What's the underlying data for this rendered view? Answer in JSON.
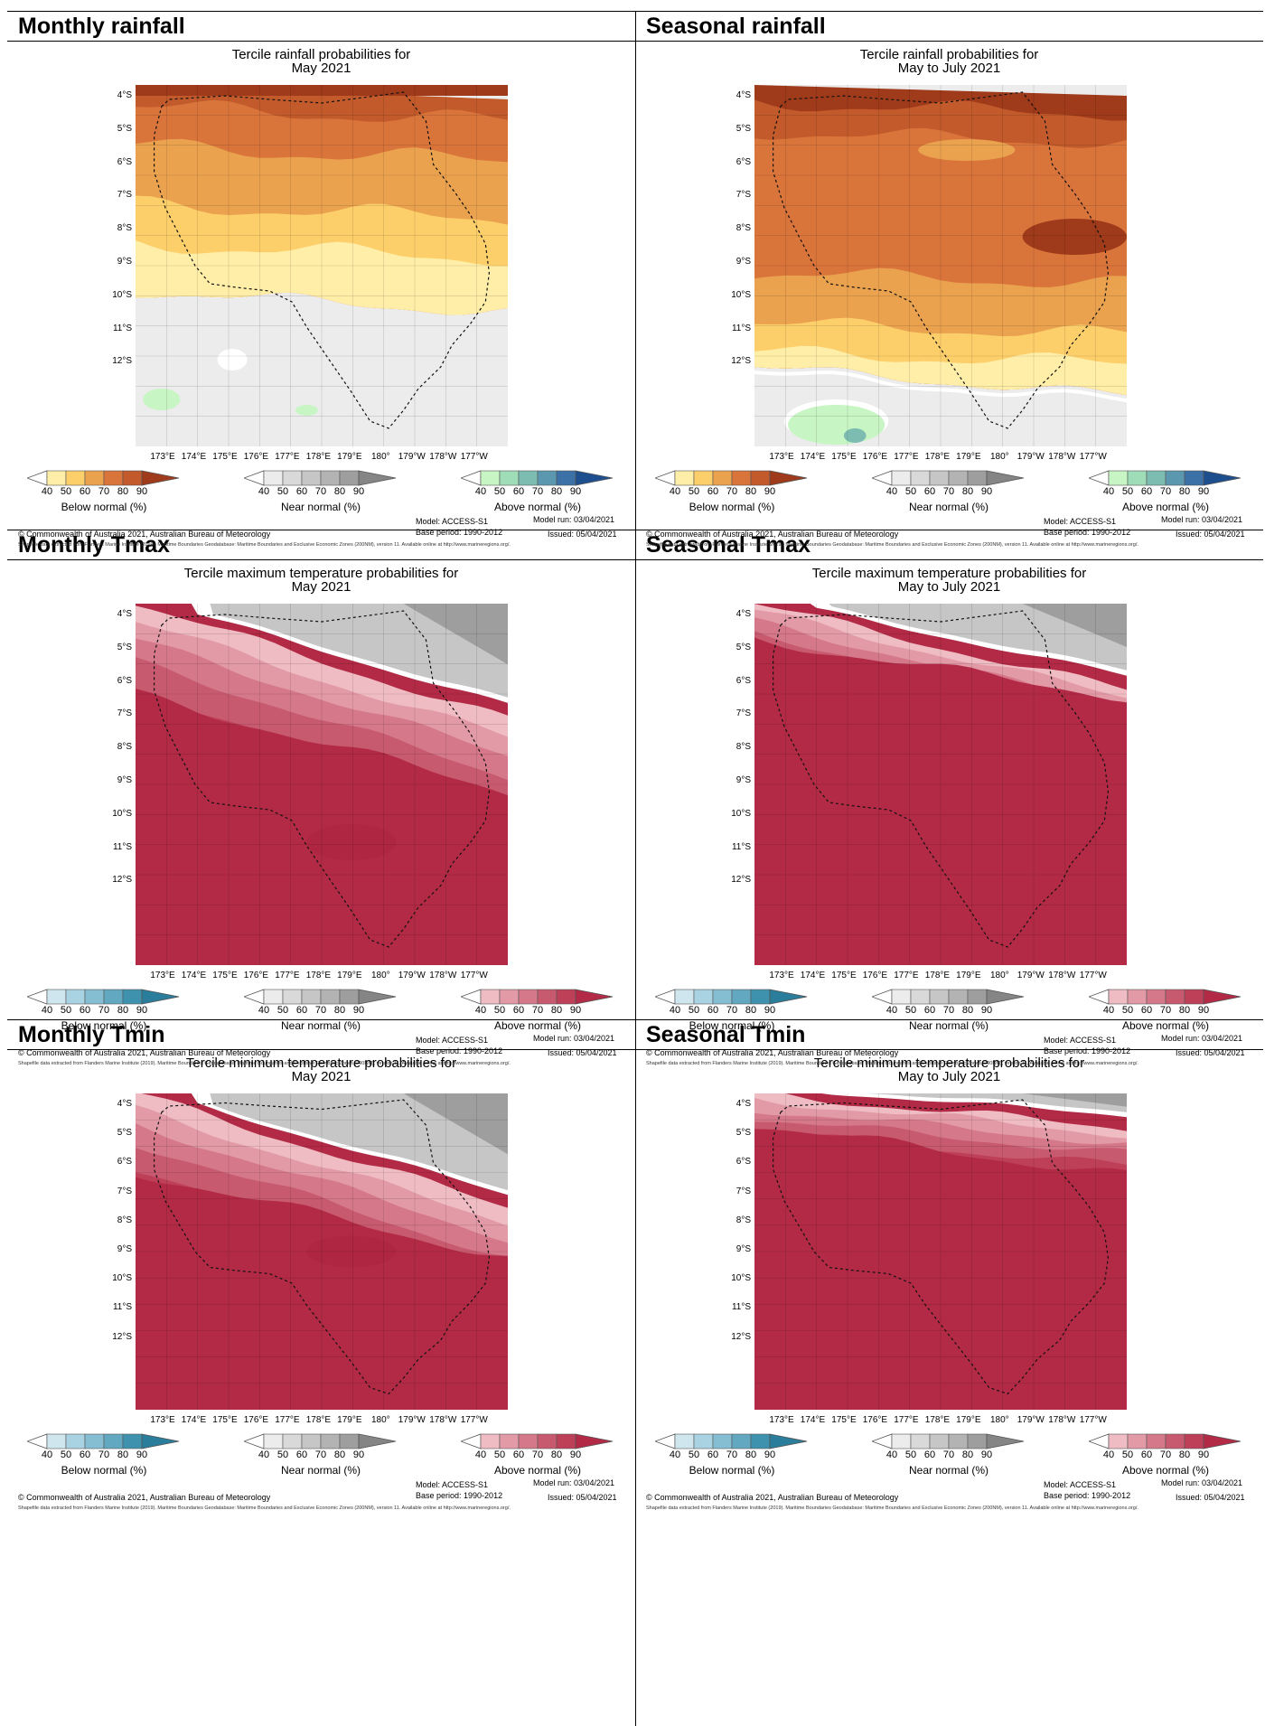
{
  "sections": [
    {
      "left": "Monthly rainfall",
      "right": "Seasonal rainfall"
    },
    {
      "left": "Monthly Tmax",
      "right": "Seasonal Tmax"
    },
    {
      "left": "Monthly Tmin",
      "right": "Seasonal Tmin"
    }
  ],
  "panels": [
    {
      "id": "mr",
      "title": [
        "Tercile rainfall probabilities for",
        "May 2021"
      ],
      "type": "rain",
      "period": "month",
      "legends": [
        {
          "label": "Below normal (%)",
          "palette": "rain_below"
        },
        {
          "label": "Near normal (%)",
          "palette": "near"
        },
        {
          "label": "Above normal (%)",
          "palette": "rain_above"
        }
      ]
    },
    {
      "id": "sr",
      "title": [
        "Tercile rainfall probabilities for",
        "May to July 2021"
      ],
      "type": "rain",
      "period": "season",
      "legends": [
        {
          "label": "Below normal (%)",
          "palette": "rain_below"
        },
        {
          "label": "Near normal (%)",
          "palette": "near"
        },
        {
          "label": "Above normal (%)",
          "palette": "rain_above"
        }
      ]
    },
    {
      "id": "mx",
      "title": [
        "Tercile maximum temperature probabilities for",
        "May 2021"
      ],
      "type": "temp",
      "period": "month",
      "legends": [
        {
          "label": "Below normal (%)",
          "palette": "temp_below"
        },
        {
          "label": "Near normal (%)",
          "palette": "near"
        },
        {
          "label": "Above normal (%)",
          "palette": "temp_above"
        }
      ]
    },
    {
      "id": "sx",
      "title": [
        "Tercile maximum temperature probabilities for",
        "May to July 2021"
      ],
      "type": "temp",
      "period": "season",
      "legends": [
        {
          "label": "Below normal (%)",
          "palette": "temp_below"
        },
        {
          "label": "Near normal (%)",
          "palette": "near"
        },
        {
          "label": "Above normal (%)",
          "palette": "temp_above"
        }
      ]
    },
    {
      "id": "mn",
      "title": [
        "Tercile minimum temperature probabilities for",
        "May 2021"
      ],
      "type": "temp",
      "period": "month",
      "legends": [
        {
          "label": "Below normal (%)",
          "palette": "temp_below"
        },
        {
          "label": "Near normal (%)",
          "palette": "near"
        },
        {
          "label": "Above normal (%)",
          "palette": "temp_above"
        }
      ]
    },
    {
      "id": "sn",
      "title": [
        "Tercile minimum temperature probabilities for",
        "May to July 2021"
      ],
      "type": "temp",
      "period": "season",
      "legends": [
        {
          "label": "Below normal (%)",
          "palette": "temp_below"
        },
        {
          "label": "Near normal (%)",
          "palette": "near"
        },
        {
          "label": "Above normal (%)",
          "palette": "temp_above"
        }
      ]
    }
  ],
  "lat_labels": [
    "4°S",
    "5°S",
    "6°S",
    "7°S",
    "8°S",
    "9°S",
    "10°S",
    "11°S",
    "12°S"
  ],
  "lon_labels": [
    "173°E",
    "174°E",
    "175°E",
    "176°E",
    "177°E",
    "178°E",
    "179°E",
    "180°",
    "179°W",
    "178°W",
    "177°W"
  ],
  "legend_ticks": [
    "40",
    "50",
    "60",
    "70",
    "80",
    "90"
  ],
  "palettes": {
    "rain_below": [
      "#ffeea8",
      "#fdcf6a",
      "#eaa24f",
      "#d9743b",
      "#c25a2b",
      "#9f3a1a"
    ],
    "rain_above": [
      "#c8f5c4",
      "#9fdcb8",
      "#7dbdb1",
      "#5b98b0",
      "#3b71a6",
      "#1d4f8f"
    ],
    "near": [
      "#ececec",
      "#d9d9d9",
      "#c6c6c6",
      "#b3b3b3",
      "#9e9e9e",
      "#858585"
    ],
    "temp_below": [
      "#cfe6ef",
      "#a9d3e2",
      "#85bed2",
      "#62a8c1",
      "#3f92ae",
      "#2a7e9b"
    ],
    "temp_above": [
      "#efbcc3",
      "#e29aa6",
      "#d5788a",
      "#c85a70",
      "#be3f58",
      "#b22a45"
    ]
  },
  "footer": {
    "copyright": "© Commonwealth of Australia 2021, Australian Bureau of Meteorology",
    "model": "Model: ACCESS-S1",
    "base_period": "Base period: 1990-2012",
    "model_run": "Model run: 03/04/2021",
    "issued": "Issued: 05/04/2021",
    "shapefile": "Shapefile data extracted from Flanders Marine Institute (2019). Maritime Boundaries Geodatabase: Maritime Boundaries and Exclusive Economic Zones (200NM), version 11. Available online at http://www.marineregions.org/."
  }
}
